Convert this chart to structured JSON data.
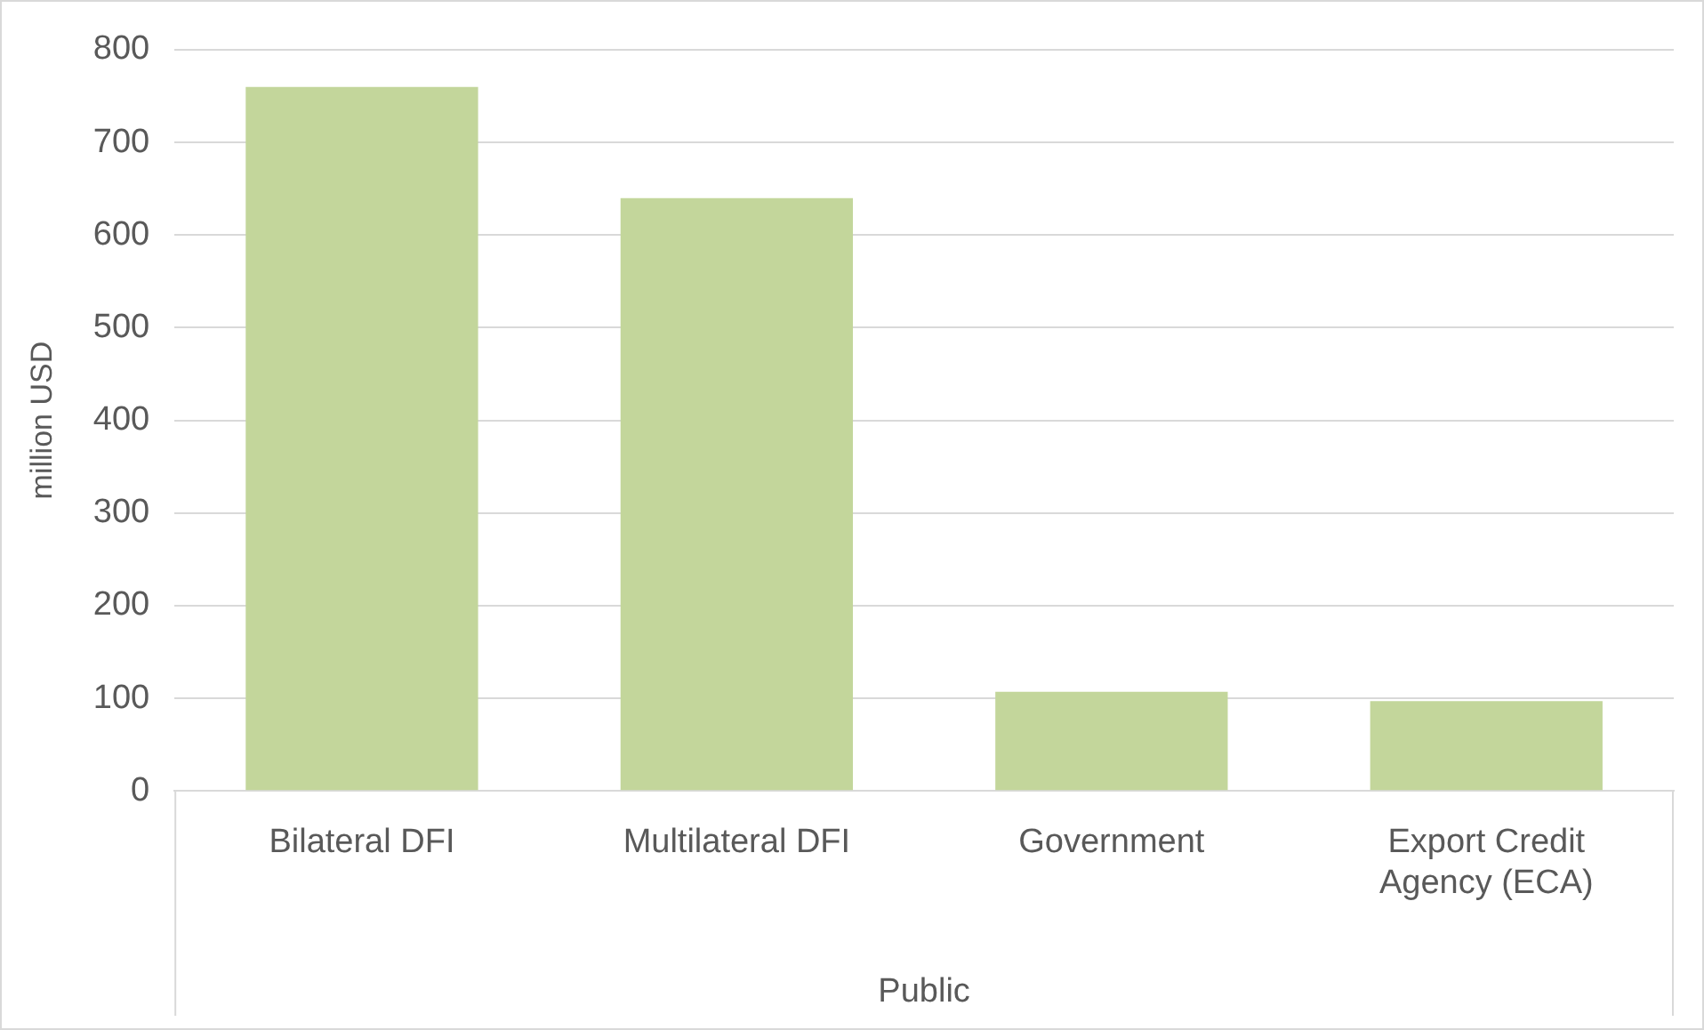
{
  "chart_data": {
    "type": "bar",
    "ylabel": "million USD",
    "xlabel": "Public",
    "categories": [
      "Bilateral DFI",
      "Multilateral DFI",
      "Government",
      "Export Credit Agency (ECA)"
    ],
    "values": [
      760,
      640,
      107,
      97
    ],
    "color": "#c3d69b",
    "ylim": [
      0,
      800
    ],
    "yticks": [
      0,
      100,
      200,
      300,
      400,
      500,
      600,
      700,
      800
    ],
    "grid": "y",
    "legend": false
  }
}
